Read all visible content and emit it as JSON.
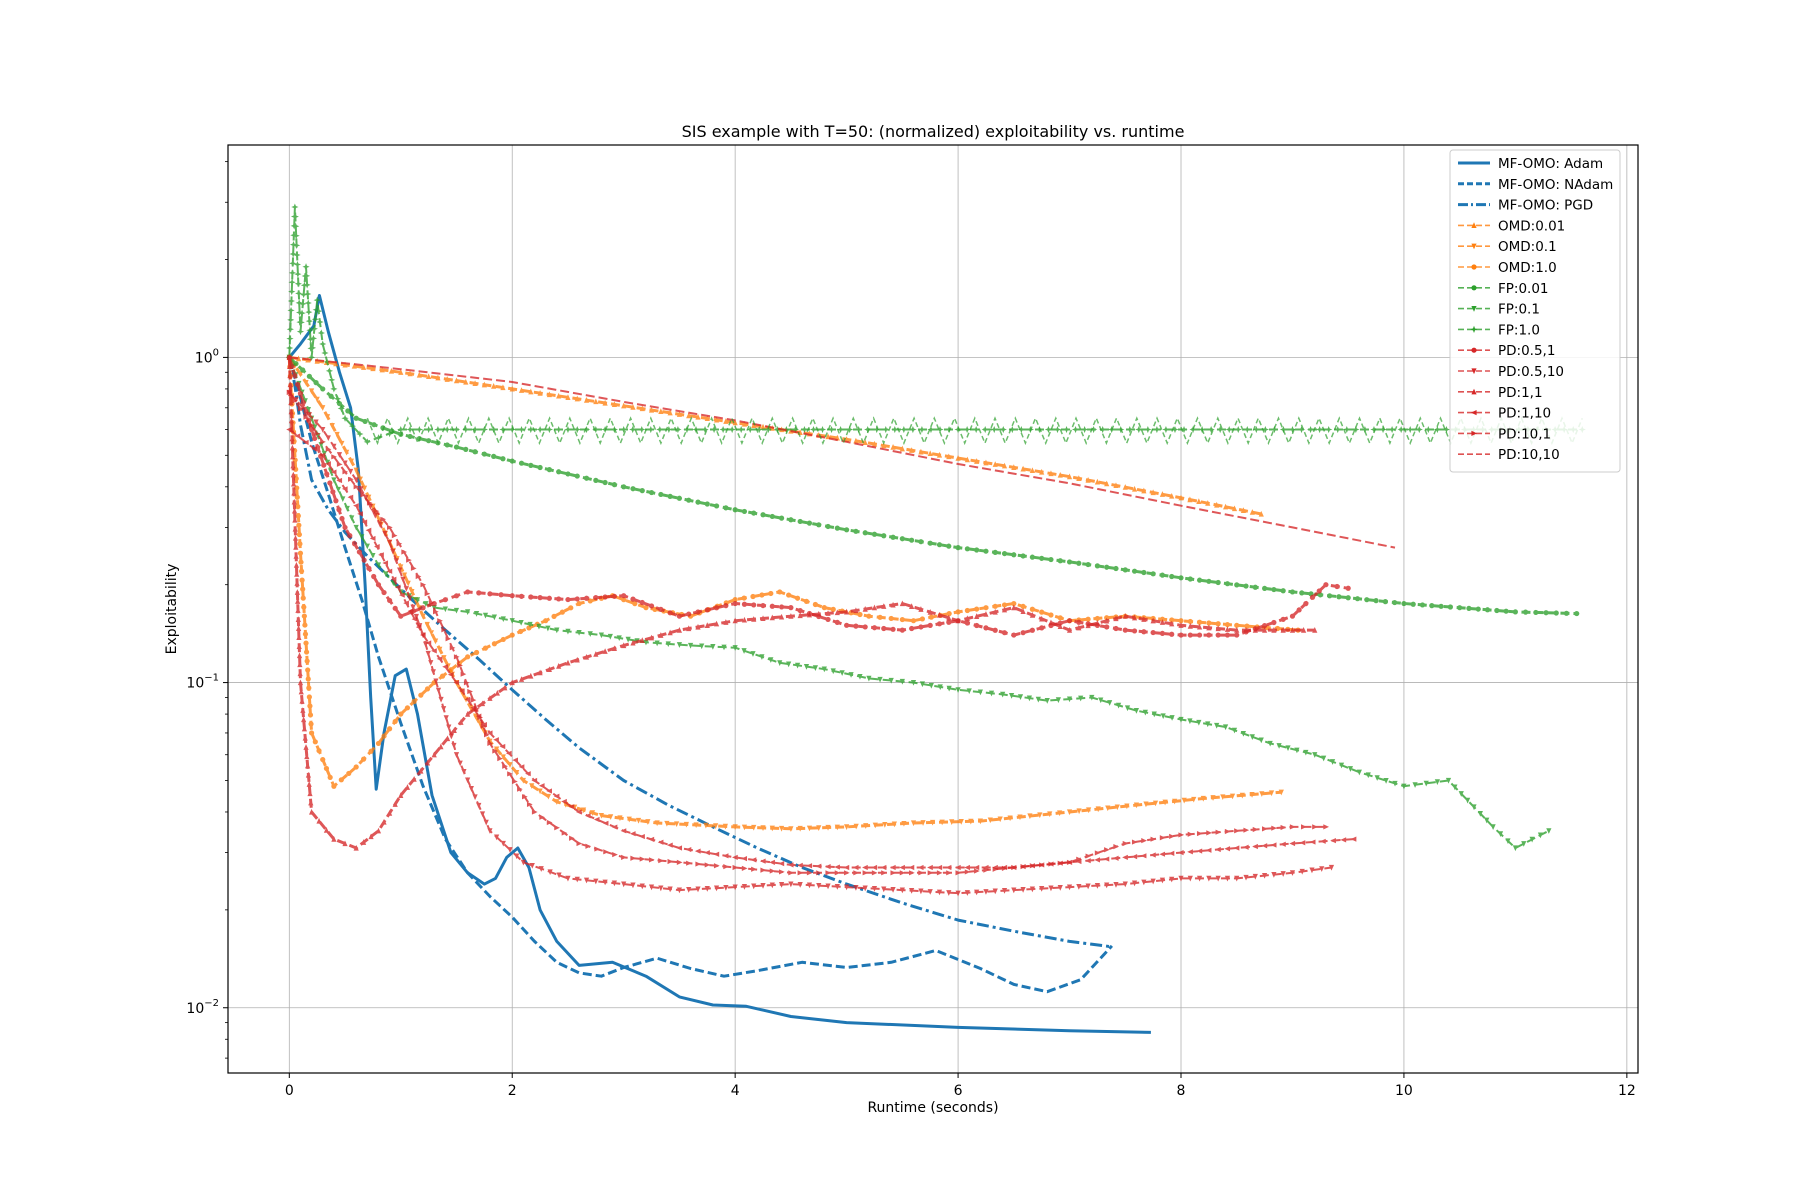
{
  "chart_data": {
    "type": "line",
    "title": "SIS example with T=50: (normalized) exploitability vs. runtime",
    "xlabel": "Runtime (seconds)",
    "ylabel": "Exploitability",
    "xlim": [
      -0.55,
      12.1
    ],
    "ylim": [
      0.0063,
      4.5
    ],
    "yscale": "log",
    "grid": true,
    "legend_position": "top-right",
    "x_ticks": [
      {
        "value": 0,
        "label": "0"
      },
      {
        "value": 2,
        "label": "2"
      },
      {
        "value": 4,
        "label": "4"
      },
      {
        "value": 6,
        "label": "6"
      },
      {
        "value": 8,
        "label": "8"
      },
      {
        "value": 10,
        "label": "10"
      },
      {
        "value": 12,
        "label": "12"
      }
    ],
    "y_ticks": [
      {
        "value": 0.01,
        "base": "10",
        "exp": "−2"
      },
      {
        "value": 0.1,
        "base": "10",
        "exp": "−1"
      },
      {
        "value": 1,
        "base": "10",
        "exp": "0"
      }
    ],
    "series": [
      {
        "name": "MF-OMO: Adam",
        "color": "#1f77b4",
        "style": "solid",
        "marker": "none",
        "width": 3,
        "x": [
          0,
          0.1,
          0.22,
          0.27,
          0.35,
          0.45,
          0.55,
          0.62,
          0.68,
          0.73,
          0.78,
          0.85,
          0.95,
          1.05,
          1.15,
          1.28,
          1.45,
          1.6,
          1.75,
          1.85,
          1.95,
          2.05,
          2.15,
          2.25,
          2.4,
          2.6,
          2.9,
          3.2,
          3.5,
          3.8,
          4.1,
          4.5,
          5,
          6,
          7,
          7.73
        ],
        "y": [
          1.0,
          1.1,
          1.25,
          1.55,
          1.2,
          0.9,
          0.7,
          0.45,
          0.2,
          0.09,
          0.047,
          0.07,
          0.105,
          0.11,
          0.08,
          0.045,
          0.03,
          0.026,
          0.024,
          0.025,
          0.029,
          0.031,
          0.027,
          0.02,
          0.016,
          0.0135,
          0.0138,
          0.0125,
          0.0108,
          0.0102,
          0.0101,
          0.0094,
          0.009,
          0.0087,
          0.0085,
          0.0084
        ]
      },
      {
        "name": "MF-OMO: NAdam",
        "color": "#1f77b4",
        "style": "dashed",
        "marker": "none",
        "width": 3,
        "x": [
          0,
          0.1,
          0.2,
          0.35,
          0.5,
          0.65,
          0.8,
          1.0,
          1.2,
          1.4,
          1.6,
          1.8,
          2.0,
          2.2,
          2.4,
          2.6,
          2.8,
          3.0,
          3.3,
          3.6,
          3.9,
          4.2,
          4.6,
          5.0,
          5.4,
          5.8,
          6.2,
          6.5,
          6.8,
          7.1,
          7.38
        ],
        "y": [
          1.0,
          0.75,
          0.55,
          0.38,
          0.26,
          0.18,
          0.12,
          0.075,
          0.048,
          0.033,
          0.026,
          0.022,
          0.019,
          0.016,
          0.0138,
          0.0128,
          0.0125,
          0.0133,
          0.0142,
          0.0132,
          0.0125,
          0.013,
          0.0138,
          0.0133,
          0.0138,
          0.015,
          0.0132,
          0.0118,
          0.0112,
          0.0122,
          0.0155
        ]
      },
      {
        "name": "MF-OMO: PGD",
        "color": "#1f77b4",
        "style": "dashdot",
        "marker": "none",
        "width": 3,
        "x": [
          0,
          0.05,
          0.1,
          0.2,
          0.35,
          0.5,
          0.7,
          0.9,
          1.1,
          1.4,
          1.7,
          2.0,
          2.3,
          2.6,
          3.0,
          3.4,
          3.8,
          4.2,
          4.6,
          5.0,
          5.5,
          6.0,
          6.5,
          7.0,
          7.38
        ],
        "y": [
          1.0,
          0.82,
          0.62,
          0.42,
          0.34,
          0.29,
          0.245,
          0.21,
          0.18,
          0.145,
          0.118,
          0.095,
          0.077,
          0.063,
          0.05,
          0.042,
          0.036,
          0.031,
          0.027,
          0.024,
          0.021,
          0.0186,
          0.0172,
          0.016,
          0.0154
        ]
      },
      {
        "name": "OMD:0.01",
        "color": "#ff7f0e",
        "style": "dashed",
        "marker": "triangle-up",
        "width": 3,
        "x": [
          0,
          1,
          2,
          3,
          4,
          5,
          6,
          7,
          8,
          8.72
        ],
        "y": [
          1.0,
          0.9,
          0.8,
          0.71,
          0.63,
          0.56,
          0.49,
          0.43,
          0.37,
          0.33
        ]
      },
      {
        "name": "OMD:0.1",
        "color": "#ff7f0e",
        "style": "dashed",
        "marker": "triangle-down",
        "width": 3,
        "x": [
          0,
          0.3,
          0.6,
          0.9,
          1.2,
          1.5,
          1.8,
          2.1,
          2.4,
          2.8,
          3.3,
          4.0,
          4.5,
          5.0,
          5.6,
          6.2,
          7.0,
          7.6,
          8.2,
          8.9
        ],
        "y": [
          1.0,
          0.7,
          0.45,
          0.27,
          0.16,
          0.1,
          0.066,
          0.05,
          0.043,
          0.039,
          0.037,
          0.036,
          0.0355,
          0.036,
          0.037,
          0.0375,
          0.04,
          0.042,
          0.044,
          0.046
        ]
      },
      {
        "name": "OMD:1.0",
        "color": "#ff7f0e",
        "style": "dashed",
        "marker": "circle",
        "width": 3,
        "x": [
          0,
          0.1,
          0.2,
          0.4,
          0.6,
          0.8,
          1.0,
          1.3,
          1.6,
          2.0,
          2.3,
          2.6,
          2.9,
          3.2,
          3.6,
          4.0,
          4.4,
          4.8,
          5.2,
          5.6,
          6.0,
          6.5,
          7.0,
          7.5,
          8.0,
          8.5,
          9.05
        ],
        "y": [
          1.0,
          0.25,
          0.07,
          0.048,
          0.055,
          0.065,
          0.08,
          0.1,
          0.12,
          0.14,
          0.155,
          0.175,
          0.185,
          0.17,
          0.16,
          0.18,
          0.19,
          0.17,
          0.16,
          0.155,
          0.165,
          0.175,
          0.155,
          0.16,
          0.155,
          0.15,
          0.145
        ]
      },
      {
        "name": "FP:0.01",
        "color": "#2ca02c",
        "style": "dashed",
        "marker": "circle",
        "width": 3,
        "x": [
          0,
          0.3,
          0.6,
          1.0,
          1.5,
          2.0,
          3.0,
          4.0,
          5.0,
          6.0,
          7.0,
          8.0,
          9.0,
          10.0,
          11.0,
          11.55
        ],
        "y": [
          1.0,
          0.8,
          0.65,
          0.58,
          0.53,
          0.48,
          0.4,
          0.34,
          0.295,
          0.26,
          0.235,
          0.21,
          0.19,
          0.175,
          0.165,
          0.163
        ]
      },
      {
        "name": "FP:0.1",
        "color": "#2ca02c",
        "style": "dashed",
        "marker": "triangle-down",
        "width": 2,
        "x": [
          0,
          0.2,
          0.4,
          0.6,
          0.8,
          1.0,
          1.3,
          1.6,
          2.0,
          2.4,
          2.8,
          3.2,
          3.6,
          4.0,
          4.4,
          4.8,
          5.2,
          5.6,
          6.0,
          6.4,
          6.8,
          7.2,
          7.6,
          8.0,
          8.4,
          8.8,
          9.2,
          9.6,
          10.0,
          10.4,
          10.8,
          11.0,
          11.3
        ],
        "y": [
          1.0,
          0.65,
          0.42,
          0.3,
          0.23,
          0.19,
          0.17,
          0.165,
          0.155,
          0.145,
          0.14,
          0.133,
          0.13,
          0.128,
          0.115,
          0.11,
          0.103,
          0.1,
          0.095,
          0.092,
          0.088,
          0.09,
          0.082,
          0.077,
          0.073,
          0.065,
          0.06,
          0.053,
          0.048,
          0.05,
          0.036,
          0.031,
          0.035
        ]
      },
      {
        "name": "FP:1.0",
        "color": "#2ca02c",
        "style": "dashed",
        "marker": "star",
        "width": 2,
        "x": [
          0,
          0.05,
          0.1,
          0.15,
          0.2,
          0.25,
          0.3,
          0.4,
          0.5,
          0.7,
          1.0,
          3.0,
          6.0,
          9.0,
          11.6
        ],
        "y": [
          1.0,
          2.9,
          1.2,
          1.9,
          1.0,
          1.5,
          1.1,
          0.8,
          0.65,
          0.55,
          0.6,
          0.6,
          0.6,
          0.6,
          0.6
        ]
      },
      {
        "name": "PD:0.5,1",
        "color": "#d62728",
        "style": "dashed",
        "marker": "circle",
        "width": 3,
        "x": [
          0,
          0.2,
          0.5,
          0.8,
          1.0,
          1.3,
          1.6,
          2.0,
          2.5,
          3.0,
          3.5,
          4.0,
          4.5,
          5.0,
          5.5,
          6.0,
          6.5,
          7.0,
          7.5,
          8.0,
          8.5,
          9.0,
          9.3,
          9.5
        ],
        "y": [
          1.0,
          0.6,
          0.3,
          0.2,
          0.16,
          0.175,
          0.19,
          0.185,
          0.18,
          0.185,
          0.16,
          0.175,
          0.17,
          0.15,
          0.145,
          0.155,
          0.14,
          0.155,
          0.145,
          0.14,
          0.14,
          0.16,
          0.2,
          0.195
        ]
      },
      {
        "name": "PD:0.5,10",
        "color": "#d62728",
        "style": "dashed",
        "marker": "triangle-down",
        "width": 2,
        "x": [
          0,
          0.3,
          0.6,
          0.9,
          1.2,
          1.5,
          1.8,
          2.1,
          2.5,
          3.0,
          3.5,
          4.0,
          4.5,
          5.0,
          5.5,
          6.0,
          6.5,
          7.0,
          7.5,
          8.0,
          8.5,
          9.0,
          9.35
        ],
        "y": [
          0.78,
          0.6,
          0.42,
          0.27,
          0.14,
          0.06,
          0.035,
          0.028,
          0.025,
          0.024,
          0.023,
          0.0235,
          0.024,
          0.0235,
          0.023,
          0.0225,
          0.023,
          0.0235,
          0.024,
          0.025,
          0.025,
          0.026,
          0.027
        ]
      },
      {
        "name": "PD:1,1",
        "color": "#d62728",
        "style": "dashed",
        "marker": "triangle-up",
        "width": 3,
        "x": [
          0,
          0.1,
          0.2,
          0.4,
          0.6,
          0.8,
          1.0,
          1.3,
          1.6,
          2.0,
          2.5,
          3.0,
          3.5,
          4.0,
          4.5,
          5.0,
          5.5,
          6.0,
          6.5,
          7.0,
          7.5,
          8.0,
          8.5,
          9.0,
          9.2
        ],
        "y": [
          1.0,
          0.1,
          0.04,
          0.033,
          0.031,
          0.035,
          0.045,
          0.06,
          0.08,
          0.1,
          0.115,
          0.13,
          0.145,
          0.155,
          0.16,
          0.165,
          0.175,
          0.155,
          0.17,
          0.145,
          0.16,
          0.15,
          0.145,
          0.145,
          0.145
        ]
      },
      {
        "name": "PD:1,10",
        "color": "#d62728",
        "style": "dashed",
        "marker": "triangle-left",
        "width": 2,
        "x": [
          0,
          0.3,
          0.6,
          0.9,
          1.2,
          1.5,
          1.8,
          2.2,
          2.6,
          3.0,
          3.5,
          4.0,
          4.5,
          5.0,
          5.5,
          6.0,
          6.5,
          7.0,
          7.5,
          8.0,
          8.5,
          9.0,
          9.55
        ],
        "y": [
          0.6,
          0.5,
          0.35,
          0.22,
          0.14,
          0.1,
          0.07,
          0.05,
          0.04,
          0.035,
          0.031,
          0.029,
          0.0275,
          0.027,
          0.027,
          0.027,
          0.027,
          0.028,
          0.029,
          0.03,
          0.031,
          0.032,
          0.033
        ]
      },
      {
        "name": "PD:10,1",
        "color": "#d62728",
        "style": "dashed",
        "marker": "triangle-right",
        "width": 2,
        "x": [
          0,
          0.3,
          0.6,
          0.9,
          1.2,
          1.5,
          1.8,
          2.2,
          2.6,
          3.0,
          3.5,
          4.0,
          4.5,
          5.0,
          5.5,
          6.0,
          6.5,
          7.0,
          7.5,
          8.0,
          8.5,
          9.0,
          9.3
        ],
        "y": [
          0.78,
          0.55,
          0.4,
          0.3,
          0.2,
          0.12,
          0.065,
          0.04,
          0.032,
          0.029,
          0.028,
          0.027,
          0.026,
          0.026,
          0.026,
          0.026,
          0.027,
          0.028,
          0.032,
          0.034,
          0.035,
          0.036,
          0.036
        ]
      },
      {
        "name": "PD:10,10",
        "color": "#d62728",
        "style": "dashed",
        "marker": "none",
        "width": 2,
        "x": [
          0,
          0.5,
          1.0,
          2.0,
          3.0,
          4.0,
          5.0,
          6.0,
          7.0,
          8.0,
          9.0,
          9.92
        ],
        "y": [
          1.0,
          0.96,
          0.92,
          0.84,
          0.73,
          0.64,
          0.55,
          0.47,
          0.41,
          0.35,
          0.3,
          0.26
        ]
      }
    ]
  }
}
